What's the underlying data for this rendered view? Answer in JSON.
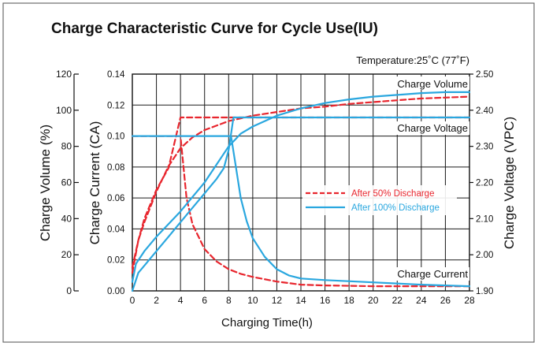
{
  "chart_data": {
    "type": "line",
    "title": "Charge Characteristic Curve for Cycle Use(IU)",
    "subtitle": "Temperature:25˚C (77˚F)",
    "xlabel": "Charging Time(h)",
    "ylabel_volume": "Charge Volume (%)",
    "ylabel_current": "Charge Current (CA)",
    "ylabel_voltage": "Charge Voltage (VPC)",
    "xlim": [
      0,
      28
    ],
    "x_ticks": [
      "0",
      "2",
      "4",
      "6",
      "8",
      "10",
      "12",
      "14",
      "16",
      "18",
      "20",
      "22",
      "24",
      "26",
      "28"
    ],
    "volume_axis": {
      "range": [
        0,
        120
      ],
      "ticks": [
        "0",
        "20",
        "40",
        "60",
        "80",
        "100",
        "120"
      ]
    },
    "current_axis": {
      "range": [
        0,
        0.14
      ],
      "ticks": [
        "0.00",
        "0.02",
        "0.04",
        "0.06",
        "0.08",
        "0.10",
        "0.12",
        "0.14"
      ]
    },
    "voltage_axis": {
      "range": [
        1.9,
        2.5
      ],
      "ticks": [
        "1.90",
        "2.00",
        "2.10",
        "2.20",
        "2.30",
        "2.40",
        "2.50"
      ]
    },
    "grid": true,
    "legend": {
      "placement": "center-right",
      "entries": [
        {
          "label": "After 50% Discharge",
          "color": "#e8262e",
          "style": "dashed"
        },
        {
          "label": "After 100% Discharge",
          "color": "#2aa7df",
          "style": "solid"
        }
      ]
    },
    "annotations": [
      "Charge Volume",
      "Charge Voltage",
      "Charge Current"
    ],
    "series": [
      {
        "group": "After 50% Discharge",
        "curve": "Charge Volume",
        "axis": "volume",
        "color": "#e8262e",
        "x": [
          0,
          0.5,
          1,
          2,
          3,
          4,
          5,
          6,
          8,
          10,
          12,
          14,
          16,
          18,
          20,
          22,
          24,
          26,
          28
        ],
        "y": [
          10,
          28,
          38,
          55,
          69,
          79,
          85,
          89,
          94,
          97,
          99,
          101,
          102,
          103.5,
          104.5,
          105.5,
          106.5,
          107,
          107.5
        ]
      },
      {
        "group": "After 50% Discharge",
        "curve": "Charge Voltage",
        "axis": "voltage",
        "color": "#e8262e",
        "x": [
          0,
          0.5,
          1,
          2,
          3,
          4,
          5,
          8,
          12,
          16,
          20,
          24,
          28
        ],
        "y": [
          1.965,
          2.04,
          2.1,
          2.18,
          2.24,
          2.38,
          2.38,
          2.38,
          2.38,
          2.38,
          2.38,
          2.38,
          2.38
        ]
      },
      {
        "group": "After 50% Discharge",
        "curve": "Charge Current",
        "axis": "current",
        "color": "#e8262e",
        "x": [
          0,
          4,
          4.5,
          5,
          6,
          7,
          8,
          9,
          10,
          12,
          14,
          16,
          20,
          24,
          28
        ],
        "y": [
          0.1,
          0.1,
          0.06,
          0.043,
          0.027,
          0.019,
          0.014,
          0.011,
          0.009,
          0.006,
          0.004,
          0.0035,
          0.003,
          0.003,
          0.003
        ]
      },
      {
        "group": "After 100% Discharge",
        "curve": "Charge Volume",
        "axis": "volume",
        "color": "#2aa7df",
        "x": [
          0,
          0.3,
          1,
          2,
          3,
          4,
          5,
          6,
          7,
          8,
          9,
          10,
          12,
          14,
          16,
          18,
          20,
          22,
          24,
          26,
          28
        ],
        "y": [
          5,
          15,
          22,
          30,
          37,
          44,
          52,
          60,
          70,
          80,
          87,
          91,
          97,
          101,
          104,
          106,
          107.5,
          108.5,
          109.5,
          110,
          110
        ]
      },
      {
        "group": "After 100% Discharge",
        "curve": "Charge Voltage",
        "axis": "voltage",
        "color": "#2aa7df",
        "x": [
          0,
          0.5,
          1,
          2,
          3,
          4,
          5,
          6,
          7,
          7.6,
          8,
          8.4,
          12,
          16,
          20,
          24,
          28
        ],
        "y": [
          1.9,
          1.95,
          1.97,
          2.01,
          2.05,
          2.09,
          2.13,
          2.17,
          2.21,
          2.24,
          2.29,
          2.38,
          2.38,
          2.38,
          2.38,
          2.38,
          2.38
        ]
      },
      {
        "group": "After 100% Discharge",
        "curve": "Charge Current",
        "axis": "current",
        "color": "#2aa7df",
        "x": [
          0,
          8.2,
          8.6,
          9,
          9.5,
          10,
          11,
          12,
          13,
          14,
          16,
          20,
          24,
          28
        ],
        "y": [
          0.1,
          0.1,
          0.08,
          0.06,
          0.045,
          0.034,
          0.022,
          0.014,
          0.01,
          0.008,
          0.007,
          0.0055,
          0.004,
          0.003
        ]
      }
    ]
  }
}
